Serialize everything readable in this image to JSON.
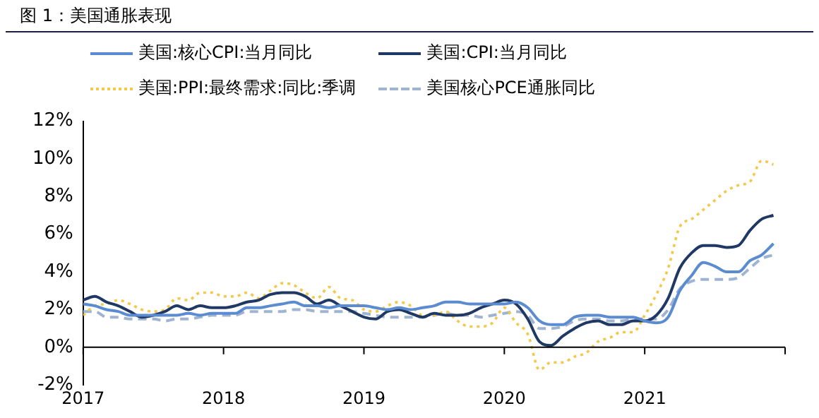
{
  "chart_data": {
    "type": "line",
    "title": "图 1：美国通胀表现",
    "legend": "top",
    "grid": false,
    "marker": "none",
    "xlim": [
      2017,
      2022
    ],
    "xticks": [
      2017,
      2018,
      2019,
      2020,
      2021,
      {
        "value": 2022,
        "label": null
      }
    ],
    "ylim": [
      -2,
      12
    ],
    "yticks": [
      {
        "value": -2,
        "label": "-2%"
      },
      {
        "value": 0,
        "label": "0%"
      },
      {
        "value": 2,
        "label": "2%"
      },
      {
        "value": 4,
        "label": "4%"
      },
      {
        "value": 6,
        "label": "6%"
      },
      {
        "value": 8,
        "label": "8%"
      },
      {
        "value": 10,
        "label": "10%"
      },
      {
        "value": 12,
        "label": "12%"
      }
    ],
    "series": [
      {
        "name": "美国:核心CPI:当月同比",
        "color": "#5b8bd0",
        "line_style": "solid",
        "values": [
          2.3,
          2.2,
          2.0,
          1.9,
          1.7,
          1.7,
          1.7,
          1.7,
          1.7,
          1.8,
          1.7,
          1.8,
          1.8,
          1.8,
          2.1,
          2.1,
          2.2,
          2.3,
          2.4,
          2.2,
          2.2,
          2.1,
          2.2,
          2.2,
          2.2,
          2.1,
          2.0,
          2.1,
          2.0,
          2.1,
          2.2,
          2.4,
          2.4,
          2.3,
          2.3,
          2.3,
          2.3,
          2.4,
          2.1,
          1.4,
          1.2,
          1.2,
          1.6,
          1.7,
          1.7,
          1.6,
          1.6,
          1.6,
          1.4,
          1.3,
          1.6,
          3.0,
          3.8,
          4.5,
          4.3,
          4.0,
          4.0,
          4.6,
          4.9,
          5.5
        ]
      },
      {
        "name": "美国:CPI:当月同比",
        "color": "#1f3864",
        "line_style": "solid",
        "values": [
          2.5,
          2.7,
          2.4,
          2.2,
          1.9,
          1.6,
          1.7,
          1.9,
          2.2,
          2.0,
          2.2,
          2.1,
          2.1,
          2.2,
          2.4,
          2.5,
          2.8,
          2.9,
          2.9,
          2.7,
          2.3,
          2.5,
          2.2,
          1.9,
          1.6,
          1.5,
          1.9,
          2.0,
          1.8,
          1.6,
          1.8,
          1.7,
          1.7,
          1.8,
          2.1,
          2.3,
          2.5,
          2.3,
          1.5,
          0.3,
          0.1,
          0.6,
          1.0,
          1.3,
          1.4,
          1.2,
          1.2,
          1.4,
          1.4,
          1.7,
          2.6,
          4.2,
          5.0,
          5.4,
          5.4,
          5.3,
          5.4,
          6.2,
          6.8,
          7.0
        ]
      },
      {
        "name": "美国:PPI:最终需求:同比:季调",
        "color": "#f2c94c",
        "line_style": "dotted",
        "values": [
          1.7,
          2.2,
          2.3,
          2.5,
          2.3,
          2.0,
          1.9,
          2.0,
          2.6,
          2.5,
          2.9,
          2.9,
          2.7,
          2.7,
          2.9,
          2.6,
          3.0,
          3.4,
          3.3,
          2.9,
          2.6,
          3.2,
          2.6,
          2.5,
          2.0,
          1.9,
          2.2,
          2.4,
          2.2,
          1.7,
          1.7,
          1.9,
          1.4,
          1.1,
          1.1,
          1.3,
          2.1,
          1.3,
          0.7,
          -1.2,
          -0.8,
          -0.8,
          -0.5,
          -0.3,
          0.3,
          0.5,
          0.8,
          0.8,
          1.7,
          2.8,
          4.2,
          6.4,
          6.8,
          7.3,
          7.8,
          8.3,
          8.6,
          8.8,
          9.9,
          9.7
        ]
      },
      {
        "name": "美国核心PCE通胀同比",
        "color": "#9fb4d0",
        "line_style": "dashed",
        "values": [
          1.9,
          1.9,
          1.6,
          1.6,
          1.5,
          1.5,
          1.5,
          1.4,
          1.5,
          1.5,
          1.6,
          1.7,
          1.7,
          1.7,
          1.9,
          1.9,
          1.9,
          1.9,
          2.0,
          2.0,
          1.9,
          1.9,
          1.9,
          1.9,
          1.8,
          1.7,
          1.6,
          1.6,
          1.6,
          1.6,
          1.7,
          1.8,
          1.7,
          1.7,
          1.6,
          1.7,
          1.8,
          1.9,
          1.7,
          1.0,
          1.0,
          1.1,
          1.4,
          1.5,
          1.5,
          1.4,
          1.4,
          1.5,
          1.5,
          1.5,
          2.0,
          3.1,
          3.5,
          3.6,
          3.6,
          3.6,
          3.7,
          4.2,
          4.7,
          4.9
        ]
      }
    ],
    "x": [
      2017.0,
      2017.083,
      2017.167,
      2017.25,
      2017.333,
      2017.417,
      2017.5,
      2017.583,
      2017.667,
      2017.75,
      2017.833,
      2017.917,
      2018.0,
      2018.083,
      2018.167,
      2018.25,
      2018.333,
      2018.417,
      2018.5,
      2018.583,
      2018.667,
      2018.75,
      2018.833,
      2018.917,
      2019.0,
      2019.083,
      2019.167,
      2019.25,
      2019.333,
      2019.417,
      2019.5,
      2019.583,
      2019.667,
      2019.75,
      2019.833,
      2019.917,
      2020.0,
      2020.083,
      2020.167,
      2020.25,
      2020.333,
      2020.417,
      2020.5,
      2020.583,
      2020.667,
      2020.75,
      2020.833,
      2020.917,
      2021.0,
      2021.083,
      2021.167,
      2021.25,
      2021.333,
      2021.417,
      2021.5,
      2021.583,
      2021.667,
      2021.75,
      2021.833,
      2021.917
    ]
  }
}
